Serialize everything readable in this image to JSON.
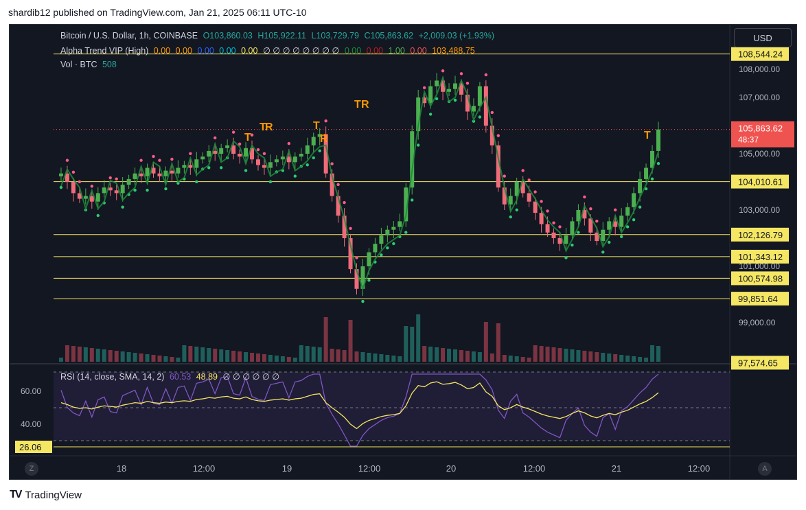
{
  "caption": "shardib12 published on TradingView.com, Jan 21, 2025 06:11 UTC-10",
  "footer_brand": "TradingView",
  "currency_button": "USD",
  "corner_left": "Z",
  "corner_right": "A",
  "legend": {
    "symbol": "Bitcoin / U.S. Dollar, 1h, COINBASE",
    "ohlc": {
      "o": "O103,860.03",
      "h": "H105,922.11",
      "l": "L103,729.79",
      "c": "C105,863.62",
      "chg": "+2,009.03 (+1.93%)"
    },
    "indicator_name": "Alpha Trend VIP (High)",
    "indicator_values": [
      "0.00",
      "0.00",
      "0.00",
      "0.00",
      "0.00",
      "∅ ∅ ∅ ∅ ∅ ∅ ∅ ∅",
      "0.00",
      "0.00",
      "1.00",
      "0.00",
      "103,488.75"
    ],
    "vol_label": "Vol · BTC",
    "vol_value": "508",
    "rsi_label": "RSI (14, close, SMA, 14, 2)",
    "rsi_value": "60.53",
    "rsi_sma_value": "48.89",
    "rsi_extra": "∅ ∅ ∅ ∅ ∅ ∅"
  },
  "colors": {
    "up": "#26a69a",
    "down": "#ef5350",
    "up_candle": "#4caf50",
    "down_candle": "#f06b7a",
    "level": "#f5e663",
    "bg": "#131722",
    "rsi_line": "#7e57c2",
    "rsi_sma": "#f5e663",
    "trend_green": "#1b8a3a",
    "trend_red": "#b71c1c",
    "trend_orange": "#ff9800"
  },
  "chart_data": {
    "type": "candlestick",
    "symbol": "BTCUSD",
    "interval": "1h",
    "y_ticks": [
      "108,000.00",
      "107,000.00",
      "105,000.00",
      "103,000.00",
      "101,000.00",
      "99,000.00"
    ],
    "x_ticks": [
      "18",
      "12:00",
      "19",
      "12:00",
      "20",
      "12:00",
      "21",
      "12:00"
    ],
    "level_labels": [
      "108,544.24",
      "104,010.61",
      "102,126.79",
      "101,343.12",
      "100,574.98",
      "99,851.64",
      "97,574.65"
    ],
    "current_price": "105,863.62",
    "countdown": "48:37",
    "rsi_ticks": [
      "60.00",
      "40.00"
    ],
    "rsi_level_label": "26.06",
    "signal_labels": [
      "T",
      "T",
      "R",
      "T",
      "R",
      "T",
      "R",
      "T"
    ]
  }
}
